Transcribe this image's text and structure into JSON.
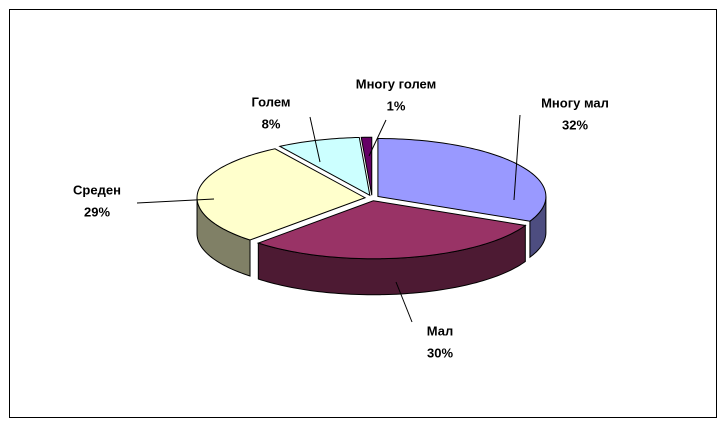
{
  "chart_data": {
    "type": "pie3d",
    "categories": [
      "Многу мал",
      "Мал",
      "Среден",
      "Голем",
      "Многу голем"
    ],
    "values": [
      32,
      30,
      29,
      8,
      1
    ],
    "value_labels": [
      "32%",
      "30%",
      "29%",
      "8%",
      "1%"
    ],
    "colors": [
      "#9999ff",
      "#993366",
      "#ffffcc",
      "#ccffff",
      "#660066"
    ]
  }
}
